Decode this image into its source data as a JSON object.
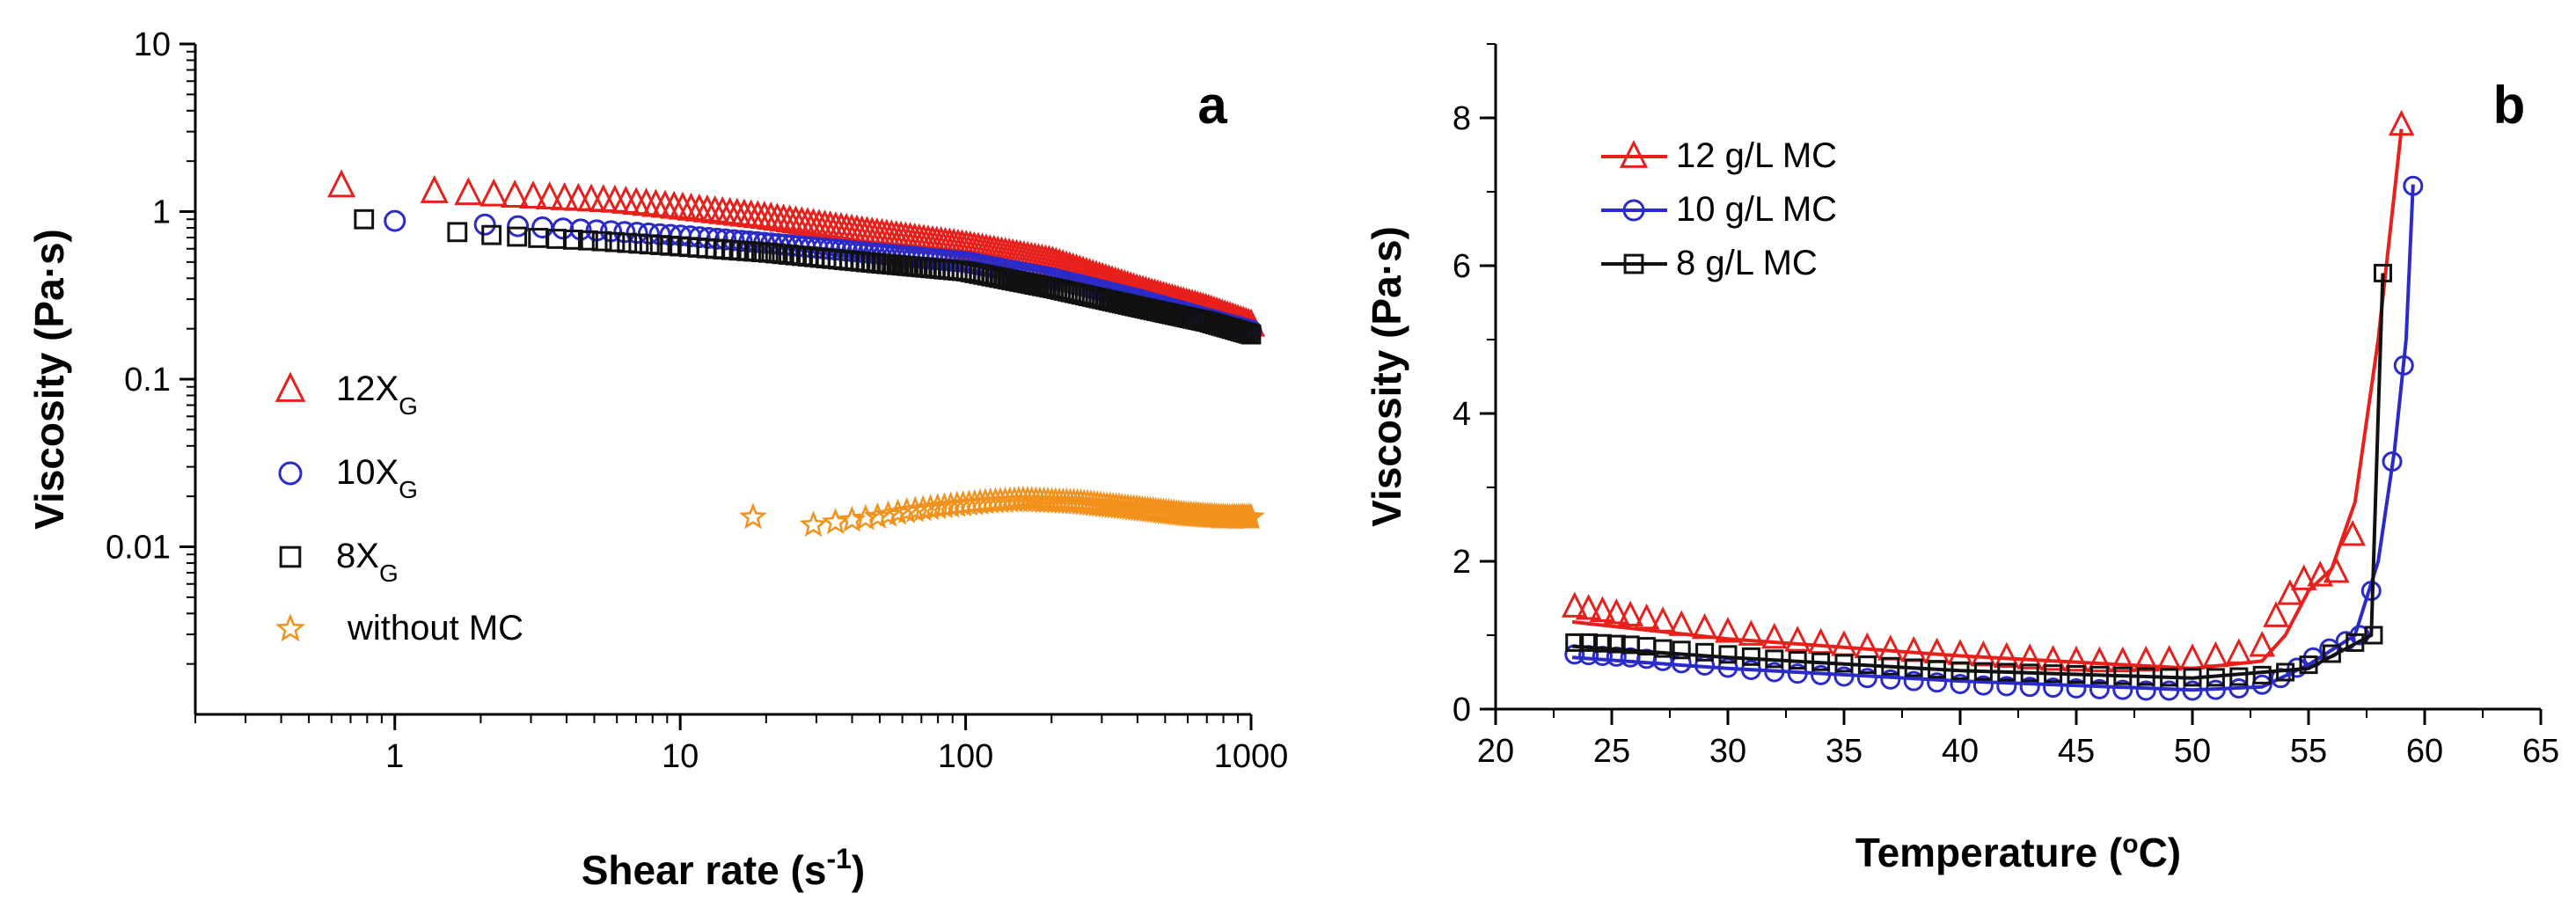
{
  "chart_data": [
    {
      "type": "scatter",
      "panel_label": "a",
      "xscale": "log",
      "yscale": "log",
      "xlim": [
        0.2,
        1000
      ],
      "ylim": [
        0.001,
        10
      ],
      "xticks": [
        {
          "value": 1,
          "label": "1"
        },
        {
          "value": 10,
          "label": "10"
        },
        {
          "value": 100,
          "label": "100"
        },
        {
          "value": 1000,
          "label": "1000"
        }
      ],
      "yticks": [
        {
          "value": 0.01,
          "label": "0.01"
        },
        {
          "value": 0.1,
          "label": "0.1"
        },
        {
          "value": 1,
          "label": "1"
        },
        {
          "value": 10,
          "label": "10"
        }
      ],
      "xlabel": {
        "text": "Shear rate (s",
        "sup": "-1",
        "tail": ")"
      },
      "ylabel": "Viscosity (Pa·s)",
      "legend_position": "left",
      "series": [
        {
          "name": "12X",
          "sub": "G",
          "marker": "triangle",
          "color": "#e8201c",
          "anchors": [
            [
              0.65,
              1.42
            ],
            [
              1.5,
              1.3
            ],
            [
              3,
              1.22
            ],
            [
              6,
              1.15
            ],
            [
              10,
              1.05
            ],
            [
              20,
              0.92
            ],
            [
              50,
              0.73
            ],
            [
              100,
              0.62
            ],
            [
              200,
              0.5
            ],
            [
              400,
              0.34
            ],
            [
              700,
              0.26
            ],
            [
              1000,
              0.21
            ]
          ],
          "x_start": 0.65,
          "x_end": 1000,
          "dense_points": 160
        },
        {
          "name": "10X",
          "sub": "G",
          "marker": "circle",
          "color": "#2b2bc9",
          "anchors": [
            [
              1,
              0.88
            ],
            [
              2.3,
              0.83
            ],
            [
              3.5,
              0.8
            ],
            [
              6,
              0.76
            ],
            [
              10,
              0.72
            ],
            [
              20,
              0.65
            ],
            [
              50,
              0.56
            ],
            [
              100,
              0.5
            ],
            [
              200,
              0.4
            ],
            [
              400,
              0.3
            ],
            [
              700,
              0.23
            ],
            [
              1000,
              0.195
            ]
          ],
          "x_start": 1,
          "x_end": 1000,
          "dense_points": 150
        },
        {
          "name": "8X",
          "sub": "G",
          "marker": "square",
          "color": "#111111",
          "anchors": [
            [
              0.78,
              0.9
            ],
            [
              1.8,
              0.74
            ],
            [
              3,
              0.7
            ],
            [
              5,
              0.67
            ],
            [
              10,
              0.62
            ],
            [
              20,
              0.57
            ],
            [
              50,
              0.49
            ],
            [
              100,
              0.44
            ],
            [
              200,
              0.35
            ],
            [
              400,
              0.27
            ],
            [
              700,
              0.22
            ],
            [
              1000,
              0.185
            ]
          ],
          "x_start": 0.78,
          "x_end": 1000,
          "dense_points": 150
        },
        {
          "name": "without MC",
          "sub": "",
          "marker": "star",
          "color": "#f2911b",
          "anchors": [
            [
              18,
              0.0122
            ],
            [
              33,
              0.0138
            ],
            [
              48,
              0.015
            ],
            [
              62,
              0.0162
            ],
            [
              80,
              0.0172
            ],
            [
              120,
              0.0185
            ],
            [
              160,
              0.019
            ],
            [
              250,
              0.0183
            ],
            [
              400,
              0.0168
            ],
            [
              600,
              0.0155
            ],
            [
              800,
              0.015
            ],
            [
              1000,
              0.015
            ]
          ],
          "x_start": 18,
          "x_end": 1000,
          "dense_points": 110
        }
      ]
    },
    {
      "type": "line",
      "panel_label": "b",
      "xlim": [
        20,
        65
      ],
      "ylim": [
        0,
        9
      ],
      "xticks": [
        {
          "value": 20,
          "label": "20"
        },
        {
          "value": 25,
          "label": "25"
        },
        {
          "value": 30,
          "label": "30"
        },
        {
          "value": 35,
          "label": "35"
        },
        {
          "value": 40,
          "label": "40"
        },
        {
          "value": 45,
          "label": "45"
        },
        {
          "value": 50,
          "label": "50"
        },
        {
          "value": 55,
          "label": "55"
        },
        {
          "value": 60,
          "label": "60"
        },
        {
          "value": 65,
          "label": "65"
        }
      ],
      "yticks": [
        {
          "value": 0,
          "label": "0"
        },
        {
          "value": 2,
          "label": "2"
        },
        {
          "value": 4,
          "label": "4"
        },
        {
          "value": 6,
          "label": "6"
        },
        {
          "value": 8,
          "label": "8"
        }
      ],
      "xlabel": {
        "text": "Temperature (",
        "sup": "o",
        "tail": "C)"
      },
      "ylabel": "Viscosity (Pa·s)",
      "legend_position": "top-left",
      "series": [
        {
          "name": "12 g/L MC",
          "marker": "triangle",
          "color": "#e8201c",
          "line": [
            [
              23.3,
              1.18
            ],
            [
              30,
              0.95
            ],
            [
              40,
              0.72
            ],
            [
              50,
              0.55
            ],
            [
              53,
              0.65
            ],
            [
              54,
              1.0
            ],
            [
              55,
              1.6
            ],
            [
              56,
              1.9
            ],
            [
              57,
              2.8
            ],
            [
              58,
              5.0
            ],
            [
              59,
              7.85
            ]
          ],
          "markers": [
            [
              23.4,
              1.38
            ],
            [
              24,
              1.35
            ],
            [
              24.6,
              1.32
            ],
            [
              25.2,
              1.29
            ],
            [
              25.8,
              1.26
            ],
            [
              26.5,
              1.22
            ],
            [
              27.2,
              1.18
            ],
            [
              28,
              1.13
            ],
            [
              29,
              1.09
            ],
            [
              30,
              1.04
            ],
            [
              31,
              1.0
            ],
            [
              32,
              0.96
            ],
            [
              33,
              0.92
            ],
            [
              34,
              0.89
            ],
            [
              35,
              0.86
            ],
            [
              36,
              0.83
            ],
            [
              37,
              0.8
            ],
            [
              38,
              0.78
            ],
            [
              39,
              0.76
            ],
            [
              40,
              0.74
            ],
            [
              41,
              0.72
            ],
            [
              42,
              0.7
            ],
            [
              43,
              0.68
            ],
            [
              44,
              0.66
            ],
            [
              45,
              0.65
            ],
            [
              46,
              0.64
            ],
            [
              47,
              0.64
            ],
            [
              48,
              0.65
            ],
            [
              49,
              0.66
            ],
            [
              50,
              0.68
            ],
            [
              51,
              0.71
            ],
            [
              52,
              0.75
            ],
            [
              53,
              0.85
            ],
            [
              53.6,
              1.25
            ],
            [
              54.2,
              1.55
            ],
            [
              54.8,
              1.75
            ],
            [
              55.5,
              1.8
            ],
            [
              56.2,
              1.85
            ],
            [
              56.9,
              2.35
            ],
            [
              59,
              7.9
            ]
          ]
        },
        {
          "name": "10 g/L MC",
          "marker": "circle",
          "color": "#2b2bc9",
          "line": [
            [
              23.3,
              0.7
            ],
            [
              30,
              0.55
            ],
            [
              40,
              0.38
            ],
            [
              50,
              0.26
            ],
            [
              53,
              0.3
            ],
            [
              55,
              0.6
            ],
            [
              57,
              1.0
            ],
            [
              58,
              2.0
            ],
            [
              58.7,
              3.5
            ],
            [
              59.2,
              5.0
            ],
            [
              59.5,
              7.1
            ]
          ],
          "markers": [
            [
              23.4,
              0.74
            ],
            [
              24,
              0.73
            ],
            [
              24.6,
              0.72
            ],
            [
              25.2,
              0.71
            ],
            [
              25.8,
              0.7
            ],
            [
              26.5,
              0.68
            ],
            [
              27.2,
              0.65
            ],
            [
              28,
              0.62
            ],
            [
              29,
              0.59
            ],
            [
              30,
              0.56
            ],
            [
              31,
              0.53
            ],
            [
              32,
              0.5
            ],
            [
              33,
              0.48
            ],
            [
              34,
              0.46
            ],
            [
              35,
              0.44
            ],
            [
              36,
              0.42
            ],
            [
              37,
              0.4
            ],
            [
              38,
              0.38
            ],
            [
              39,
              0.36
            ],
            [
              40,
              0.34
            ],
            [
              41,
              0.32
            ],
            [
              42,
              0.31
            ],
            [
              43,
              0.3
            ],
            [
              44,
              0.29
            ],
            [
              45,
              0.28
            ],
            [
              46,
              0.27
            ],
            [
              47,
              0.26
            ],
            [
              48,
              0.25
            ],
            [
              49,
              0.25
            ],
            [
              50,
              0.25
            ],
            [
              51,
              0.26
            ],
            [
              52,
              0.28
            ],
            [
              53,
              0.33
            ],
            [
              53.8,
              0.42
            ],
            [
              54.5,
              0.56
            ],
            [
              55.2,
              0.7
            ],
            [
              55.9,
              0.82
            ],
            [
              56.6,
              0.92
            ],
            [
              57.2,
              1.0
            ],
            [
              57.7,
              1.6
            ],
            [
              58.6,
              3.35
            ],
            [
              59.1,
              4.65
            ],
            [
              59.5,
              7.08
            ]
          ]
        },
        {
          "name": "8 g/L MC",
          "marker": "square",
          "color": "#111111",
          "line": [
            [
              23.3,
              0.85
            ],
            [
              30,
              0.7
            ],
            [
              40,
              0.52
            ],
            [
              50,
              0.42
            ],
            [
              55,
              0.55
            ],
            [
              57.7,
              1.0
            ],
            [
              58,
              4.0
            ],
            [
              58.2,
              5.9
            ]
          ],
          "markers": [
            [
              23.4,
              0.9
            ],
            [
              24,
              0.9
            ],
            [
              24.6,
              0.89
            ],
            [
              25.2,
              0.88
            ],
            [
              25.8,
              0.87
            ],
            [
              26.5,
              0.85
            ],
            [
              27.2,
              0.82
            ],
            [
              28,
              0.8
            ],
            [
              29,
              0.77
            ],
            [
              30,
              0.74
            ],
            [
              31,
              0.71
            ],
            [
              32,
              0.68
            ],
            [
              33,
              0.66
            ],
            [
              34,
              0.64
            ],
            [
              35,
              0.62
            ],
            [
              36,
              0.6
            ],
            [
              37,
              0.58
            ],
            [
              38,
              0.56
            ],
            [
              39,
              0.54
            ],
            [
              40,
              0.52
            ],
            [
              41,
              0.51
            ],
            [
              42,
              0.5
            ],
            [
              43,
              0.49
            ],
            [
              44,
              0.48
            ],
            [
              45,
              0.47
            ],
            [
              46,
              0.46
            ],
            [
              47,
              0.45
            ],
            [
              48,
              0.44
            ],
            [
              49,
              0.43
            ],
            [
              50,
              0.43
            ],
            [
              51,
              0.43
            ],
            [
              52,
              0.44
            ],
            [
              53,
              0.46
            ],
            [
              54,
              0.5
            ],
            [
              55,
              0.6
            ],
            [
              56,
              0.75
            ],
            [
              57,
              0.9
            ],
            [
              57.8,
              1.0
            ],
            [
              58.2,
              5.9
            ]
          ]
        }
      ]
    }
  ]
}
